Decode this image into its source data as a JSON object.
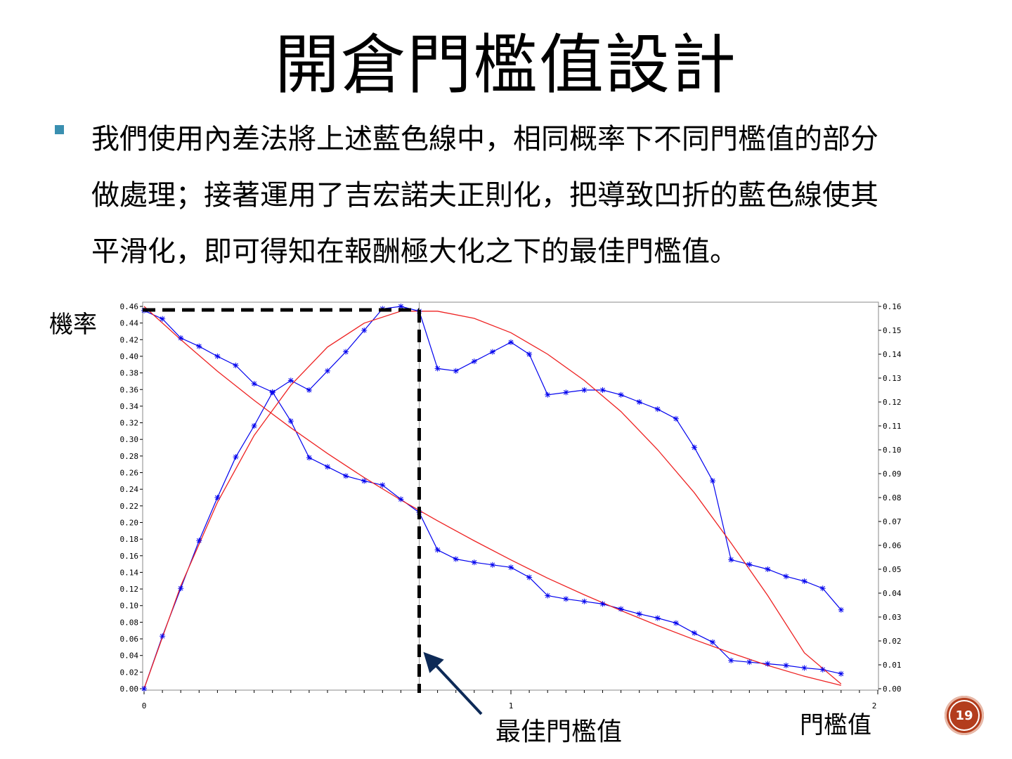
{
  "slide": {
    "title": "開倉門檻值設計",
    "bullet_lines": [
      "我們使用內差法將上述藍色線中，相同概率下不同門檻值的部分",
      "做處理；接著運用了吉宏諾夫正則化，把導致凹折的藍色線使其",
      "平滑化，即可得知在報酬極大化之下的最佳門檻值。"
    ],
    "page_number": "19",
    "accent_color": "#3a8fb0",
    "badge_color": "#b33d1d"
  },
  "chart_data": {
    "type": "line",
    "ylabel": "機率",
    "xlabel": "門檻值",
    "annotation": "最佳門檻值",
    "x_ticks": [
      "0",
      "1",
      "2"
    ],
    "xlim": [
      0,
      2
    ],
    "ylim_left": [
      0,
      0.46
    ],
    "ylim_right": [
      0,
      0.16
    ],
    "left_ticks": [
      "0.00",
      "0.02",
      "0.04",
      "0.06",
      "0.08",
      "0.10",
      "0.12",
      "0.14",
      "0.16",
      "0.18",
      "0.20",
      "0.22",
      "0.24",
      "0.26",
      "0.28",
      "0.30",
      "0.32",
      "0.34",
      "0.36",
      "0.38",
      "0.40",
      "0.42",
      "0.44",
      "0.46"
    ],
    "right_ticks": [
      "0.00",
      "0.01",
      "0.02",
      "0.03",
      "0.04",
      "0.05",
      "0.06",
      "0.07",
      "0.08",
      "0.09",
      "0.10",
      "0.11",
      "0.12",
      "0.13",
      "0.14",
      "0.15",
      "0.16"
    ],
    "optimal_threshold": 0.75,
    "series": [
      {
        "color": "#0000ee",
        "axis": "left",
        "x": [
          0,
          0.05,
          0.1,
          0.15,
          0.2,
          0.25,
          0.3,
          0.35,
          0.4,
          0.45,
          0.5,
          0.55,
          0.6,
          0.65,
          0.7,
          0.75,
          0.8,
          0.85,
          0.9,
          0.95,
          1.0,
          1.05,
          1.1,
          1.15,
          1.2,
          1.25,
          1.3,
          1.35,
          1.4,
          1.45,
          1.5,
          1.55,
          1.6,
          1.65,
          1.7,
          1.75,
          1.8,
          1.85,
          1.9
        ],
        "y": [
          0.455,
          0.445,
          0.422,
          0.412,
          0.4,
          0.389,
          0.367,
          0.357,
          0.322,
          0.278,
          0.267,
          0.256,
          0.25,
          0.245,
          0.228,
          0.212,
          0.167,
          0.156,
          0.152,
          0.149,
          0.146,
          0.134,
          0.112,
          0.108,
          0.105,
          0.102,
          0.096,
          0.09,
          0.085,
          0.079,
          0.067,
          0.056,
          0.034,
          0.032,
          0.03,
          0.028,
          0.025,
          0.023,
          0.018
        ]
      },
      {
        "color": "#0000ee",
        "axis": "right",
        "x": [
          0,
          0.05,
          0.1,
          0.15,
          0.2,
          0.25,
          0.3,
          0.35,
          0.4,
          0.45,
          0.5,
          0.55,
          0.6,
          0.65,
          0.7,
          0.75,
          0.8,
          0.85,
          0.9,
          0.95,
          1.0,
          1.05,
          1.1,
          1.15,
          1.2,
          1.25,
          1.3,
          1.35,
          1.4,
          1.45,
          1.5,
          1.55,
          1.6,
          1.65,
          1.7,
          1.75,
          1.8,
          1.85,
          1.9
        ],
        "y": [
          0.0,
          0.022,
          0.042,
          0.062,
          0.08,
          0.097,
          0.11,
          0.124,
          0.129,
          0.125,
          0.133,
          0.141,
          0.15,
          0.159,
          0.16,
          0.158,
          0.134,
          0.133,
          0.137,
          0.141,
          0.145,
          0.14,
          0.123,
          0.124,
          0.125,
          0.125,
          0.123,
          0.12,
          0.117,
          0.113,
          0.101,
          0.087,
          0.054,
          0.052,
          0.05,
          0.047,
          0.045,
          0.042,
          0.033
        ]
      },
      {
        "color": "#ee2222",
        "axis": "left",
        "fit": "smooth",
        "x": [
          0,
          0.1,
          0.2,
          0.3,
          0.4,
          0.5,
          0.6,
          0.7,
          0.8,
          0.9,
          1.0,
          1.1,
          1.2,
          1.3,
          1.4,
          1.5,
          1.6,
          1.7,
          1.8,
          1.9
        ],
        "y": [
          0.46,
          0.42,
          0.382,
          0.347,
          0.314,
          0.283,
          0.254,
          0.227,
          0.202,
          0.178,
          0.155,
          0.133,
          0.113,
          0.094,
          0.076,
          0.059,
          0.043,
          0.028,
          0.015,
          0.004
        ]
      },
      {
        "color": "#ee2222",
        "axis": "right",
        "fit": "smooth",
        "x": [
          0,
          0.1,
          0.2,
          0.3,
          0.4,
          0.5,
          0.6,
          0.7,
          0.8,
          0.9,
          1.0,
          1.1,
          1.2,
          1.3,
          1.4,
          1.5,
          1.6,
          1.7,
          1.8,
          1.9
        ],
        "y": [
          0.0,
          0.043,
          0.078,
          0.106,
          0.127,
          0.143,
          0.153,
          0.158,
          0.158,
          0.155,
          0.149,
          0.14,
          0.129,
          0.116,
          0.1,
          0.082,
          0.061,
          0.039,
          0.015,
          0.002
        ]
      }
    ]
  }
}
